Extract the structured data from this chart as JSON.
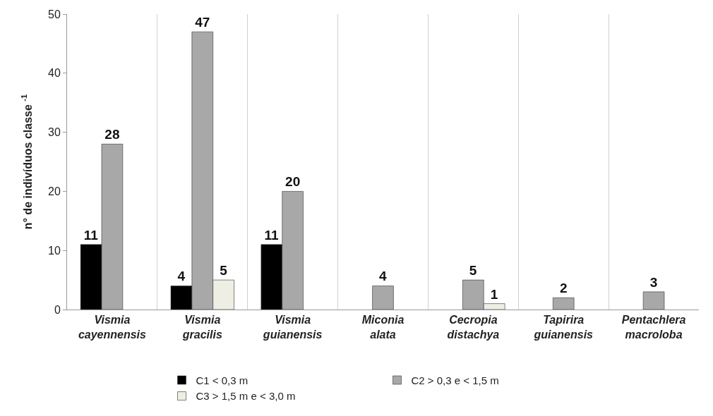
{
  "chart_data": {
    "type": "bar",
    "ylabel": "n° de indivíduos classe $^{-1}$",
    "categories": [
      "Vismia cayennensis",
      "Vismia gracilis",
      "Vismia guianensis",
      "Miconia alata",
      "Cecropia distachya",
      "Tapirira guianensis",
      "Pentachlera macroloba"
    ],
    "series": [
      {
        "name": "C1 < 0,3 m",
        "color": "#000000",
        "values": [
          11,
          4,
          11,
          null,
          null,
          null,
          null
        ]
      },
      {
        "name": "C2 > 0,3 e < 1,5 m",
        "color": "#a8a8a8",
        "values": [
          28,
          47,
          20,
          4,
          5,
          2,
          3
        ]
      },
      {
        "name": "C3 > 1,5 m e < 3,0 m",
        "color": "#efeee4",
        "values": [
          null,
          5,
          null,
          null,
          1,
          null,
          null
        ]
      }
    ],
    "ylim": [
      0,
      50
    ],
    "yticks": [
      0,
      10,
      20,
      30,
      40,
      50
    ],
    "grid": "x",
    "legend": "bottom",
    "data_labels": true
  }
}
